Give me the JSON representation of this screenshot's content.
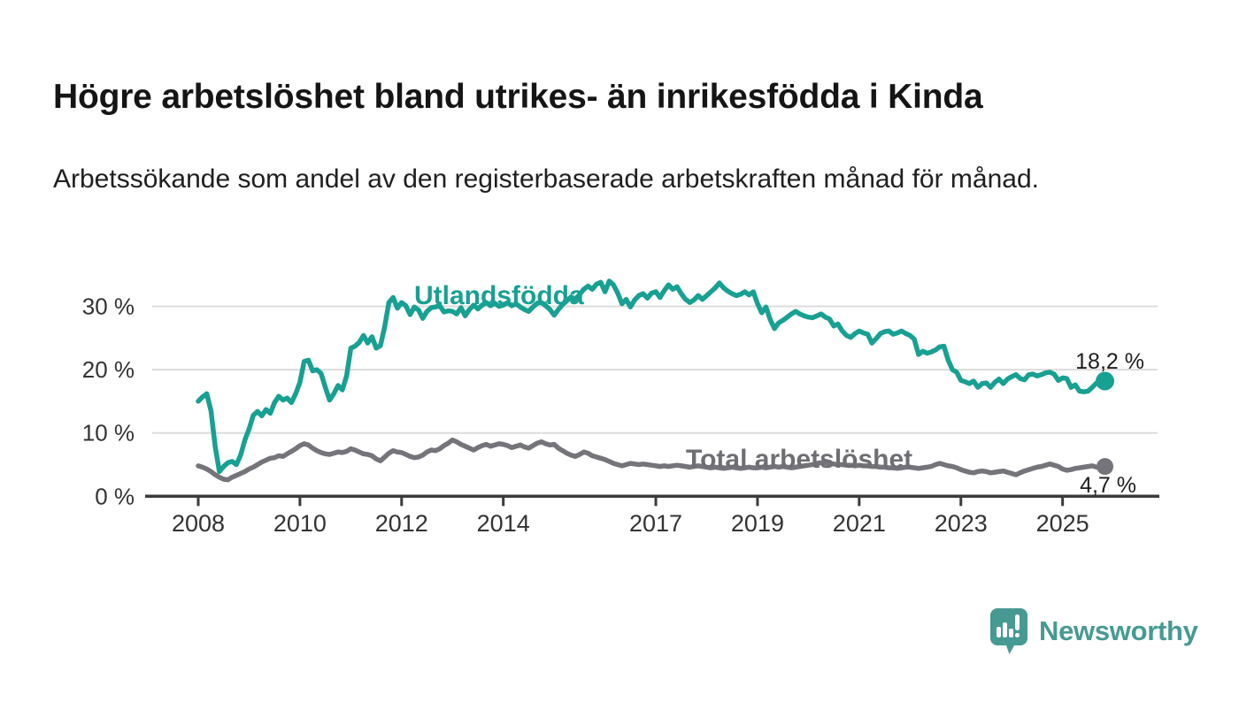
{
  "page": {
    "title": "Högre arbetslöshet bland utrikes- än inrikesfödda i Kinda",
    "subtitle": "Arbetssökande som andel av den registerbaserade arbetskraften månad för månad."
  },
  "branding": {
    "logo_text": "Newsworthy",
    "logo_color": "#479a93",
    "logo_icon": "speech-bubble-bar-chart-icon"
  },
  "chart_data": {
    "type": "line",
    "title": "",
    "xlabel": "",
    "ylabel": "",
    "x_unit": "month",
    "x_start": "2008-01",
    "x_end": "2025-11",
    "x_tick_years": [
      2008,
      2010,
      2012,
      2014,
      2017,
      2019,
      2021,
      2023,
      2025
    ],
    "y_ticks": [
      0,
      10,
      20,
      30
    ],
    "y_tick_suffix": " %",
    "ylim": [
      0,
      36
    ],
    "grid": true,
    "legend": "inline-labels",
    "colors": {
      "grid": "#dcdcdc",
      "axis": "#3b3b3b",
      "tick_text": "#333333",
      "annotation_text": "#1f1f1f"
    },
    "series": [
      {
        "name": "Utlandsfödda",
        "color": "#18a092",
        "label_color": "#18a092",
        "end_label": "18,2 %",
        "end_value": 18.2,
        "values": [
          15.0,
          15.7,
          16.2,
          13.5,
          7.8,
          3.9,
          4.7,
          5.3,
          5.5,
          5.0,
          6.5,
          8.9,
          10.6,
          12.8,
          13.4,
          12.7,
          13.7,
          13.1,
          14.8,
          15.8,
          15.2,
          15.5,
          14.8,
          16.2,
          18.0,
          21.3,
          21.5,
          19.8,
          20.0,
          19.4,
          17.2,
          15.2,
          16.2,
          17.5,
          16.8,
          19.0,
          23.4,
          23.7,
          24.3,
          25.4,
          24.2,
          25.2,
          23.4,
          23.8,
          26.8,
          30.6,
          31.4,
          29.7,
          30.6,
          30.1,
          28.7,
          29.9,
          29.4,
          28.1,
          29.2,
          29.8,
          29.9,
          30.1,
          29.1,
          29.3,
          29.2,
          28.8,
          29.8,
          28.5,
          29.5,
          30.2,
          29.6,
          30.2,
          30.6,
          30.1,
          30.5,
          30.0,
          30.2,
          30.6,
          30.1,
          30.4,
          29.9,
          29.5,
          29.2,
          29.9,
          30.5,
          30.6,
          30.1,
          29.5,
          28.6,
          29.5,
          30.3,
          30.9,
          31.5,
          31.1,
          31.9,
          32.7,
          33.2,
          32.7,
          33.5,
          33.8,
          32.3,
          34.0,
          33.4,
          32.1,
          30.4,
          31.1,
          29.9,
          31.0,
          31.7,
          32.0,
          31.3,
          32.1,
          32.3,
          31.4,
          32.5,
          33.4,
          32.7,
          33.1,
          32.0,
          31.1,
          30.6,
          31.0,
          31.7,
          31.1,
          31.7,
          32.3,
          32.9,
          33.7,
          32.9,
          32.4,
          32.0,
          31.7,
          31.9,
          32.3,
          31.8,
          32.3,
          30.4,
          29.0,
          29.9,
          27.9,
          26.5,
          27.4,
          27.8,
          28.3,
          28.8,
          29.2,
          28.8,
          28.5,
          28.3,
          28.2,
          28.5,
          28.8,
          28.3,
          28.0,
          26.9,
          27.2,
          26.1,
          25.4,
          25.1,
          25.7,
          26.1,
          25.8,
          25.6,
          24.2,
          24.9,
          25.7,
          26.0,
          26.1,
          25.6,
          25.8,
          26.1,
          25.7,
          25.4,
          24.8,
          22.4,
          22.9,
          22.6,
          22.8,
          23.1,
          23.6,
          23.7,
          21.5,
          20.0,
          19.6,
          18.3,
          18.1,
          17.8,
          18.2,
          17.2,
          17.8,
          17.9,
          17.2,
          18.0,
          18.5,
          17.8,
          18.5,
          18.9,
          19.2,
          18.6,
          18.4,
          19.2,
          19.3,
          19.0,
          19.2,
          19.5,
          19.6,
          19.3,
          18.3,
          18.7,
          18.6,
          17.2,
          17.6,
          16.6,
          16.5,
          16.6,
          17.2,
          17.9,
          18.3,
          18.2
        ]
      },
      {
        "name": "Total arbetslöshet",
        "color": "#74747a",
        "label_color": "#6e6e73",
        "end_label": "4,7 %",
        "end_value": 4.7,
        "values": [
          4.8,
          4.6,
          4.3,
          3.9,
          3.4,
          3.0,
          2.7,
          2.6,
          3.0,
          3.3,
          3.6,
          3.9,
          4.3,
          4.6,
          5.0,
          5.4,
          5.7,
          6.0,
          6.1,
          6.4,
          6.3,
          6.7,
          7.1,
          7.5,
          8.0,
          8.3,
          8.1,
          7.6,
          7.2,
          6.9,
          6.7,
          6.6,
          6.8,
          7.0,
          6.9,
          7.1,
          7.5,
          7.3,
          7.0,
          6.7,
          6.6,
          6.4,
          5.9,
          5.6,
          6.2,
          6.8,
          7.2,
          7.0,
          6.9,
          6.6,
          6.3,
          6.1,
          6.2,
          6.5,
          7.0,
          7.3,
          7.2,
          7.5,
          8.0,
          8.4,
          8.9,
          8.6,
          8.2,
          7.9,
          7.6,
          7.3,
          7.7,
          8.0,
          8.2,
          7.9,
          8.1,
          8.3,
          8.2,
          8.0,
          7.7,
          7.9,
          8.1,
          7.8,
          7.6,
          8.0,
          8.4,
          8.6,
          8.3,
          8.1,
          8.2,
          7.6,
          7.2,
          6.8,
          6.5,
          6.3,
          6.6,
          7.0,
          6.8,
          6.4,
          6.2,
          6.0,
          5.8,
          5.5,
          5.2,
          5.0,
          4.8,
          5.0,
          5.2,
          5.1,
          5.0,
          5.1,
          5.0,
          4.9,
          4.8,
          4.7,
          4.8,
          4.7,
          4.8,
          4.9,
          4.8,
          4.7,
          4.6,
          4.7,
          4.8,
          4.7,
          4.6,
          4.5,
          4.6,
          4.5,
          4.4,
          4.5,
          4.6,
          4.5,
          4.4,
          4.5,
          4.6,
          4.5,
          4.5,
          4.6,
          4.5,
          4.6,
          4.7,
          4.6,
          4.7,
          4.6,
          4.5,
          4.6,
          4.7,
          4.8,
          4.9,
          5.0,
          5.2,
          5.3,
          5.3,
          5.2,
          5.1,
          5.0,
          5.0,
          4.9,
          4.9,
          4.8,
          4.9,
          4.8,
          4.8,
          4.7,
          4.7,
          4.6,
          4.6,
          4.5,
          4.5,
          4.4,
          4.5,
          4.6,
          4.6,
          4.5,
          4.4,
          4.5,
          4.6,
          4.7,
          5.0,
          5.2,
          5.0,
          4.8,
          4.7,
          4.5,
          4.2,
          4.0,
          3.8,
          3.7,
          3.9,
          4.0,
          3.9,
          3.7,
          3.8,
          3.9,
          4.0,
          3.8,
          3.6,
          3.4,
          3.7,
          4.0,
          4.2,
          4.4,
          4.6,
          4.7,
          4.9,
          5.1,
          4.9,
          4.7,
          4.3,
          4.1,
          4.2,
          4.4,
          4.5,
          4.6,
          4.7,
          4.8,
          4.6,
          4.5,
          4.7
        ]
      }
    ]
  }
}
